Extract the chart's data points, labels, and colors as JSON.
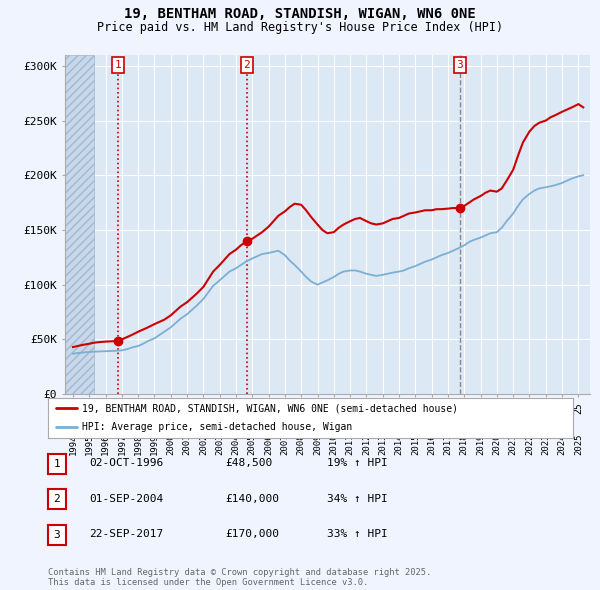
{
  "title": "19, BENTHAM ROAD, STANDISH, WIGAN, WN6 0NE",
  "subtitle": "Price paid vs. HM Land Registry's House Price Index (HPI)",
  "background_color": "#f0f4ff",
  "plot_bg_color": "#dde8f5",
  "hatch_color": "#b0c4de",
  "grid_color": "#ffffff",
  "ylim": [
    0,
    310000
  ],
  "yticks": [
    0,
    50000,
    100000,
    150000,
    200000,
    250000,
    300000
  ],
  "ytick_labels": [
    "£0",
    "£50K",
    "£100K",
    "£150K",
    "£200K",
    "£250K",
    "£300K"
  ],
  "xlim_start": 1993.5,
  "xlim_end": 2025.7,
  "sales": [
    {
      "year": 1996.75,
      "price": 48500,
      "label": "1",
      "vline": "red_dotted"
    },
    {
      "year": 2004.67,
      "price": 140000,
      "label": "2",
      "vline": "red_dotted"
    },
    {
      "year": 2017.73,
      "price": 170000,
      "label": "3",
      "vline": "grey_dashed"
    }
  ],
  "vline_red_color": "#cc0000",
  "vline_grey_color": "#888888",
  "red_line_color": "#cc0000",
  "blue_line_color": "#7bafd4",
  "dot_color": "#cc0000",
  "legend_entries": [
    "19, BENTHAM ROAD, STANDISH, WIGAN, WN6 0NE (semi-detached house)",
    "HPI: Average price, semi-detached house, Wigan"
  ],
  "table_entries": [
    {
      "num": "1",
      "date": "02-OCT-1996",
      "price": "£48,500",
      "hpi": "19% ↑ HPI"
    },
    {
      "num": "2",
      "date": "01-SEP-2004",
      "price": "£140,000",
      "hpi": "34% ↑ HPI"
    },
    {
      "num": "3",
      "date": "22-SEP-2017",
      "price": "£170,000",
      "hpi": "33% ↑ HPI"
    }
  ],
  "footer": "Contains HM Land Registry data © Crown copyright and database right 2025.\nThis data is licensed under the Open Government Licence v3.0.",
  "hpi_red_line": {
    "x": [
      1994.0,
      1994.3,
      1994.6,
      1995.0,
      1995.3,
      1995.6,
      1996.0,
      1996.3,
      1996.6,
      1996.75,
      1997.0,
      1997.3,
      1997.6,
      1998.0,
      1998.3,
      1998.6,
      1999.0,
      1999.3,
      1999.6,
      2000.0,
      2000.3,
      2000.6,
      2001.0,
      2001.3,
      2001.6,
      2002.0,
      2002.3,
      2002.6,
      2003.0,
      2003.3,
      2003.6,
      2004.0,
      2004.3,
      2004.6,
      2004.67,
      2005.0,
      2005.3,
      2005.6,
      2006.0,
      2006.3,
      2006.6,
      2007.0,
      2007.3,
      2007.6,
      2008.0,
      2008.3,
      2008.6,
      2009.0,
      2009.3,
      2009.6,
      2010.0,
      2010.3,
      2010.6,
      2011.0,
      2011.3,
      2011.6,
      2012.0,
      2012.3,
      2012.6,
      2013.0,
      2013.3,
      2013.6,
      2014.0,
      2014.3,
      2014.6,
      2015.0,
      2015.3,
      2015.6,
      2016.0,
      2016.3,
      2016.6,
      2017.0,
      2017.3,
      2017.6,
      2017.73,
      2018.0,
      2018.3,
      2018.6,
      2019.0,
      2019.3,
      2019.6,
      2020.0,
      2020.3,
      2020.6,
      2021.0,
      2021.3,
      2021.6,
      2022.0,
      2022.3,
      2022.6,
      2023.0,
      2023.3,
      2023.6,
      2024.0,
      2024.3,
      2024.6,
      2025.0,
      2025.3
    ],
    "y": [
      43000,
      44000,
      45000,
      46000,
      47000,
      47500,
      48000,
      48200,
      48400,
      48500,
      50000,
      52000,
      54000,
      57000,
      59000,
      61000,
      64000,
      66000,
      68000,
      72000,
      76000,
      80000,
      84000,
      88000,
      92000,
      98000,
      105000,
      112000,
      118000,
      123000,
      128000,
      132000,
      136000,
      139000,
      140000,
      142000,
      145000,
      148000,
      153000,
      158000,
      163000,
      167000,
      171000,
      174000,
      173000,
      168000,
      162000,
      155000,
      150000,
      147000,
      148000,
      152000,
      155000,
      158000,
      160000,
      161000,
      158000,
      156000,
      155000,
      156000,
      158000,
      160000,
      161000,
      163000,
      165000,
      166000,
      167000,
      168000,
      168000,
      169000,
      169000,
      169500,
      170000,
      170000,
      170000,
      172000,
      175000,
      178000,
      181000,
      184000,
      186000,
      185000,
      188000,
      195000,
      205000,
      218000,
      230000,
      240000,
      245000,
      248000,
      250000,
      253000,
      255000,
      258000,
      260000,
      262000,
      265000,
      262000
    ]
  },
  "hpi_blue_line": {
    "x": [
      1994.0,
      1994.3,
      1994.6,
      1995.0,
      1995.3,
      1995.6,
      1996.0,
      1996.3,
      1996.6,
      1997.0,
      1997.3,
      1997.6,
      1998.0,
      1998.3,
      1998.6,
      1999.0,
      1999.3,
      1999.6,
      2000.0,
      2000.3,
      2000.6,
      2001.0,
      2001.3,
      2001.6,
      2002.0,
      2002.3,
      2002.6,
      2003.0,
      2003.3,
      2003.6,
      2004.0,
      2004.3,
      2004.6,
      2005.0,
      2005.3,
      2005.6,
      2006.0,
      2006.3,
      2006.6,
      2007.0,
      2007.3,
      2007.6,
      2008.0,
      2008.3,
      2008.6,
      2009.0,
      2009.3,
      2009.6,
      2010.0,
      2010.3,
      2010.6,
      2011.0,
      2011.3,
      2011.6,
      2012.0,
      2012.3,
      2012.6,
      2013.0,
      2013.3,
      2013.6,
      2014.0,
      2014.3,
      2014.6,
      2015.0,
      2015.3,
      2015.6,
      2016.0,
      2016.3,
      2016.6,
      2017.0,
      2017.3,
      2017.6,
      2018.0,
      2018.3,
      2018.6,
      2019.0,
      2019.3,
      2019.6,
      2020.0,
      2020.3,
      2020.6,
      2021.0,
      2021.3,
      2021.6,
      2022.0,
      2022.3,
      2022.6,
      2023.0,
      2023.3,
      2023.6,
      2024.0,
      2024.3,
      2024.6,
      2025.0,
      2025.3
    ],
    "y": [
      37000,
      37500,
      38000,
      38500,
      38800,
      39000,
      39200,
      39400,
      39600,
      40000,
      41000,
      42500,
      44000,
      46000,
      48500,
      51000,
      54000,
      57000,
      61000,
      65000,
      69000,
      73000,
      77000,
      81000,
      87000,
      93000,
      99000,
      104000,
      108000,
      112000,
      115000,
      118000,
      121000,
      124000,
      126000,
      128000,
      129000,
      130000,
      131000,
      127000,
      122000,
      118000,
      112000,
      107000,
      103000,
      100000,
      102000,
      104000,
      107000,
      110000,
      112000,
      113000,
      113000,
      112000,
      110000,
      109000,
      108000,
      109000,
      110000,
      111000,
      112000,
      113000,
      115000,
      117000,
      119000,
      121000,
      123000,
      125000,
      127000,
      129000,
      131000,
      133000,
      136000,
      139000,
      141000,
      143000,
      145000,
      147000,
      148000,
      152000,
      158000,
      165000,
      172000,
      178000,
      183000,
      186000,
      188000,
      189000,
      190000,
      191000,
      193000,
      195000,
      197000,
      199000,
      200000
    ]
  }
}
